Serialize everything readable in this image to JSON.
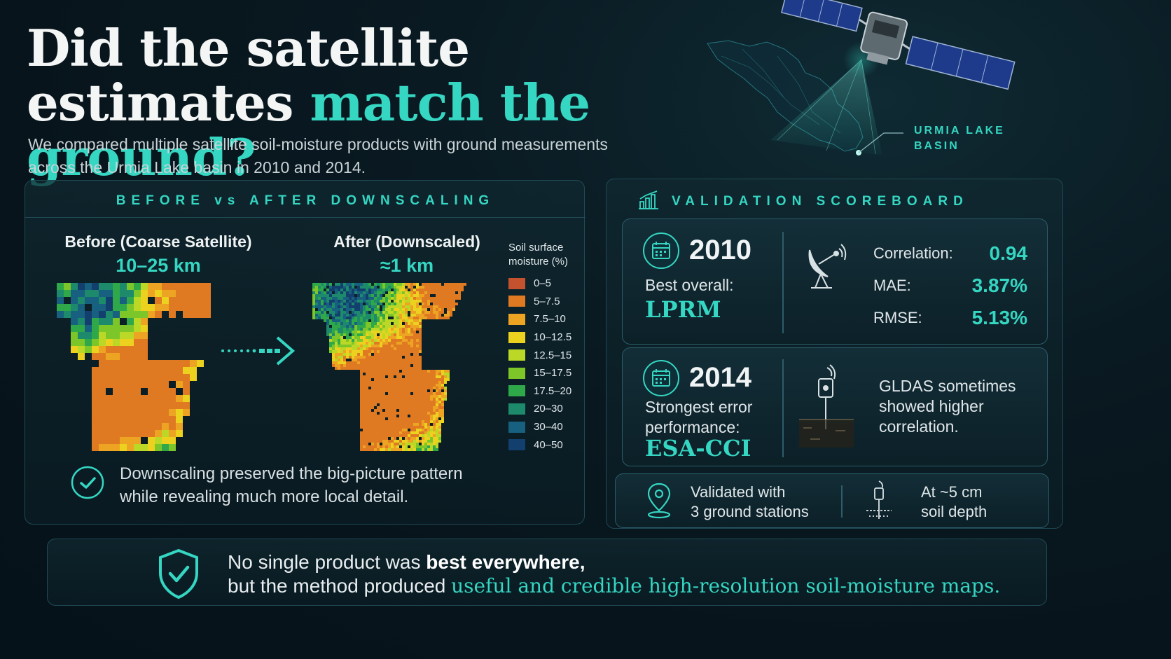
{
  "header": {
    "title_line1": "Did the satellite",
    "title_line2_plain": "estimates ",
    "title_line2_accent": "match the ground?",
    "subtitle": "We compared multiple satellite soil-moisture products with ground measurements across the Urmia Lake basin in 2010 and 2014."
  },
  "hero": {
    "basin_label_line1": "URMIA LAKE",
    "basin_label_line2": "BASIN"
  },
  "downscaling": {
    "heading": "BEFORE vs AFTER DOWNSCALING",
    "before_title": "Before (Coarse Satellite)",
    "before_res": "10–25 km",
    "after_title": "After (Downscaled)",
    "after_res": "≈1 km",
    "legend_title_line1": "Soil surface",
    "legend_title_line2": "moisture (%)",
    "legend": [
      {
        "label": "0–5",
        "color": "#c4522e"
      },
      {
        "label": "5–7.5",
        "color": "#e07a22"
      },
      {
        "label": "7.5–10",
        "color": "#eda423"
      },
      {
        "label": "10–12.5",
        "color": "#ecd21f"
      },
      {
        "label": "12.5–15",
        "color": "#bcd826"
      },
      {
        "label": "15–17.5",
        "color": "#7cc62a"
      },
      {
        "label": "17.5–20",
        "color": "#2fa84a"
      },
      {
        "label": "20–30",
        "color": "#1d8a6b"
      },
      {
        "label": "30–40",
        "color": "#17607f"
      },
      {
        "label": "40–50",
        "color": "#123f6e"
      }
    ],
    "note_line1": "Downscaling preserved the big-picture pattern",
    "note_line2": "while revealing much more local detail."
  },
  "scoreboard": {
    "heading": "VALIDATION SCOREBOARD",
    "card2010": {
      "year": "2010",
      "label": "Best overall:",
      "product": "LPRM",
      "metrics": [
        {
          "name": "Correlation:",
          "value": "0.94"
        },
        {
          "name": "MAE:",
          "value": "3.87%"
        },
        {
          "name": "RMSE:",
          "value": "5.13%"
        }
      ]
    },
    "card2014": {
      "year": "2014",
      "label_line1": "Strongest error",
      "label_line2": "performance:",
      "product": "ESA-CCI",
      "note_line1": "GLDAS sometimes",
      "note_line2": "showed higher",
      "note_line3": "correlation."
    },
    "stations": {
      "line1": "Validated with",
      "line2": "3 ground stations",
      "depth_line1": "At ~5 cm",
      "depth_line2": "soil depth"
    }
  },
  "footer": {
    "line1_plain": "No single product was ",
    "line1_bold": "best everywhere,",
    "line2_plain": "but the method produced ",
    "line2_accent": "useful and credible high-resolution soil-moisture maps."
  },
  "colors": {
    "accent": "#35d6c2",
    "background": "#07141b",
    "panel_border": "#1f4a55"
  }
}
